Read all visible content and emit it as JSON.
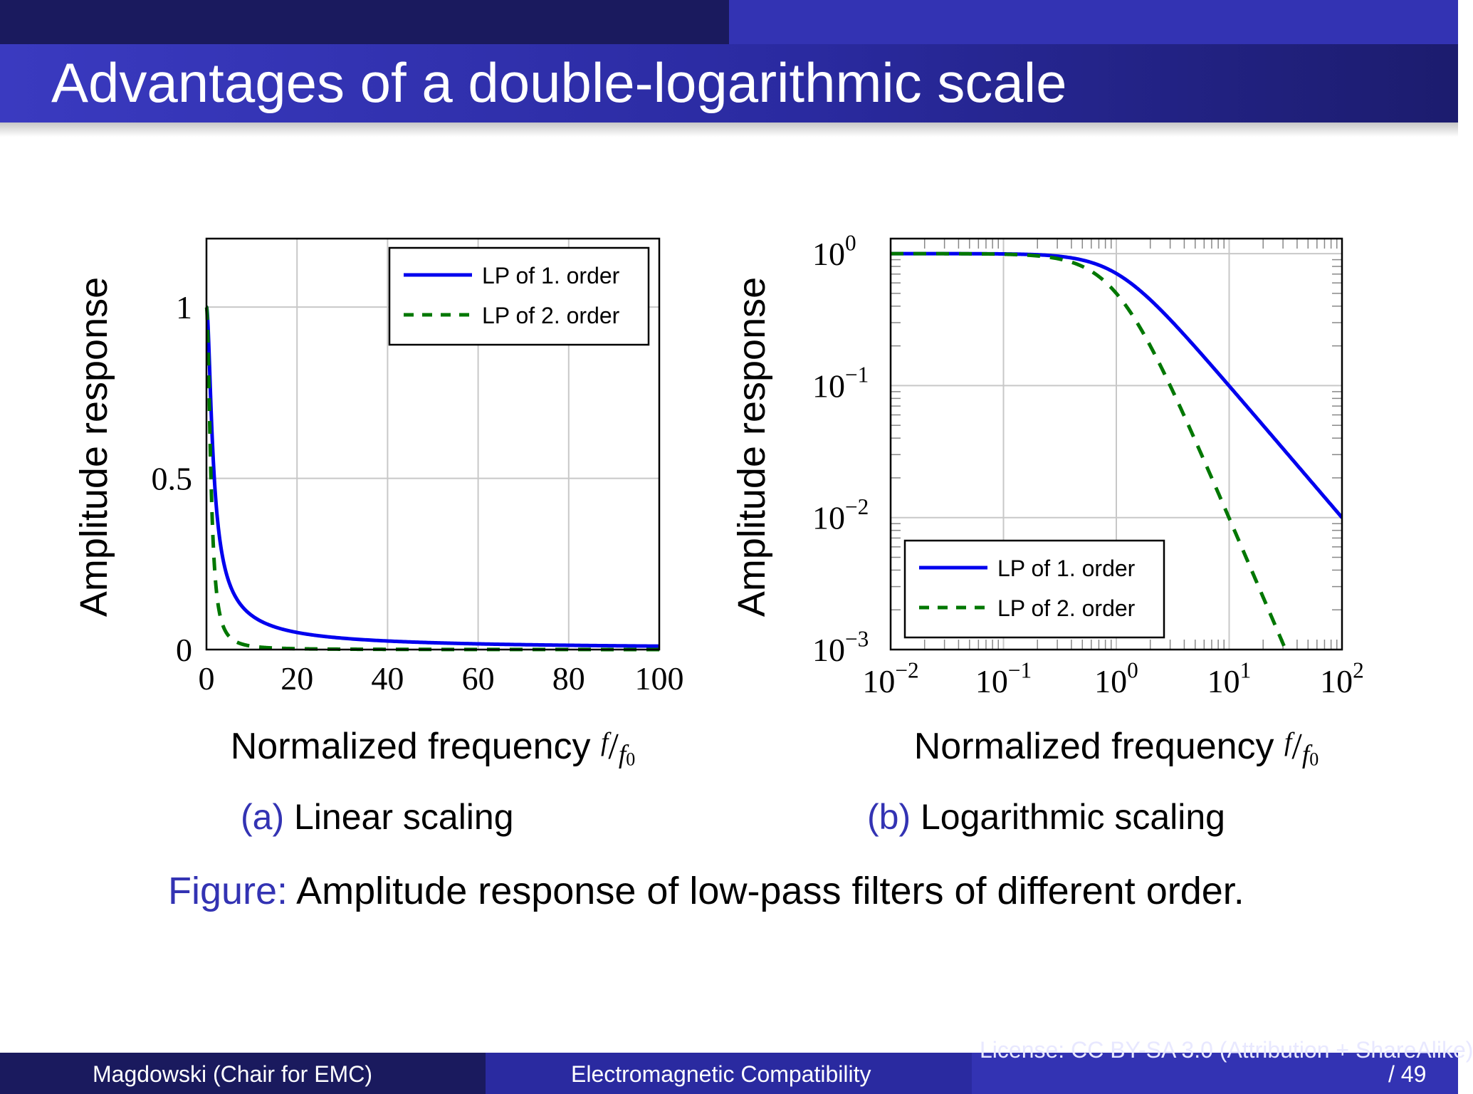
{
  "slide": {
    "title": "Advantages of a double-logarithmic scale",
    "figure_caption_label": "Figure:",
    "figure_caption_text": " Amplitude response of low-pass filters of different order.",
    "footer_author": "Magdowski  (Chair for EMC)",
    "footer_course": "Electromagnetic Compatibility",
    "footer_license": "License: CC BY-SA 3.0 (Attribution + ShareAlike)",
    "footer_page": "/ 49"
  },
  "colors": {
    "first_order": "#0000ee",
    "second_order": "#007700",
    "grid": "#c8c8c8",
    "caption_label": "#3333b3"
  },
  "chart_data": [
    {
      "type": "line",
      "subcaption_label": "(a)",
      "subcaption_text": " Linear scaling",
      "xlabel": "Normalized frequency f/f0",
      "ylabel": "Amplitude response",
      "xlim": [
        0,
        100
      ],
      "ylim": [
        0,
        1.2
      ],
      "xticks": [
        0,
        20,
        40,
        60,
        80,
        100
      ],
      "xtick_labels": [
        "0",
        "20",
        "40",
        "60",
        "80",
        "100"
      ],
      "yticks": [
        0,
        0.5,
        1
      ],
      "ytick_labels": [
        "0",
        "0.5",
        "1"
      ],
      "grid": true,
      "legend_position": "top-right",
      "series": [
        {
          "name": "LP of 1. order",
          "x": [
            0,
            0.5,
            1,
            1.5,
            2,
            3,
            4,
            5,
            7,
            10,
            15,
            20,
            30,
            40,
            50,
            60,
            70,
            80,
            90,
            100
          ],
          "y": [
            1.0,
            0.894,
            0.707,
            0.555,
            0.447,
            0.316,
            0.243,
            0.196,
            0.141,
            0.0995,
            0.0665,
            0.0499,
            0.0333,
            0.025,
            0.02,
            0.0167,
            0.0143,
            0.0125,
            0.0111,
            0.01
          ]
        },
        {
          "name": "LP of 2. order",
          "x": [
            0,
            0.5,
            1,
            1.5,
            2,
            3,
            4,
            5,
            7,
            10,
            15,
            20,
            30,
            40,
            50,
            60,
            70,
            80,
            90,
            100
          ],
          "y": [
            1.0,
            0.8,
            0.5,
            0.308,
            0.2,
            0.1,
            0.059,
            0.038,
            0.02,
            0.0099,
            0.0044,
            0.0025,
            0.0011,
            0.0006,
            0.0004,
            0.0003,
            0.0002,
            0.00016,
            0.00012,
            0.0001
          ]
        }
      ]
    },
    {
      "type": "line",
      "subcaption_label": "(b)",
      "subcaption_text": " Logarithmic scaling",
      "xlabel": "Normalized frequency f/f0",
      "ylabel": "Amplitude response",
      "xscale": "log",
      "yscale": "log",
      "xlim": [
        0.01,
        100
      ],
      "ylim": [
        0.001,
        1.3
      ],
      "xticks": [
        0.01,
        0.1,
        1,
        10,
        100
      ],
      "xtick_labels": [
        "10",
        "10",
        "10",
        "10",
        "10"
      ],
      "xtick_exponents": [
        "−2",
        "−1",
        "0",
        "1",
        "2"
      ],
      "yticks": [
        0.001,
        0.01,
        0.1,
        1
      ],
      "ytick_labels": [
        "10",
        "10",
        "10",
        "10"
      ],
      "ytick_exponents": [
        "−3",
        "−2",
        "−1",
        "0"
      ],
      "grid": true,
      "legend_position": "bottom-left",
      "series": [
        {
          "name": "LP of 1. order",
          "x": [
            0.01,
            0.03,
            0.1,
            0.2,
            0.3,
            0.5,
            0.7,
            1,
            1.5,
            2,
            3,
            5,
            10,
            20,
            30,
            50,
            100
          ],
          "y": [
            1.0,
            1.0,
            0.995,
            0.981,
            0.958,
            0.894,
            0.819,
            0.707,
            0.555,
            0.447,
            0.316,
            0.196,
            0.0995,
            0.0499,
            0.0333,
            0.02,
            0.01
          ]
        },
        {
          "name": "LP of 2. order",
          "x": [
            0.01,
            0.03,
            0.1,
            0.2,
            0.3,
            0.5,
            0.7,
            1,
            1.5,
            2,
            3,
            5,
            10,
            20,
            31.6
          ],
          "y": [
            1.0,
            0.999,
            0.99,
            0.962,
            0.917,
            0.8,
            0.671,
            0.5,
            0.308,
            0.2,
            0.1,
            0.0385,
            0.0099,
            0.0025,
            0.001
          ]
        }
      ]
    }
  ]
}
